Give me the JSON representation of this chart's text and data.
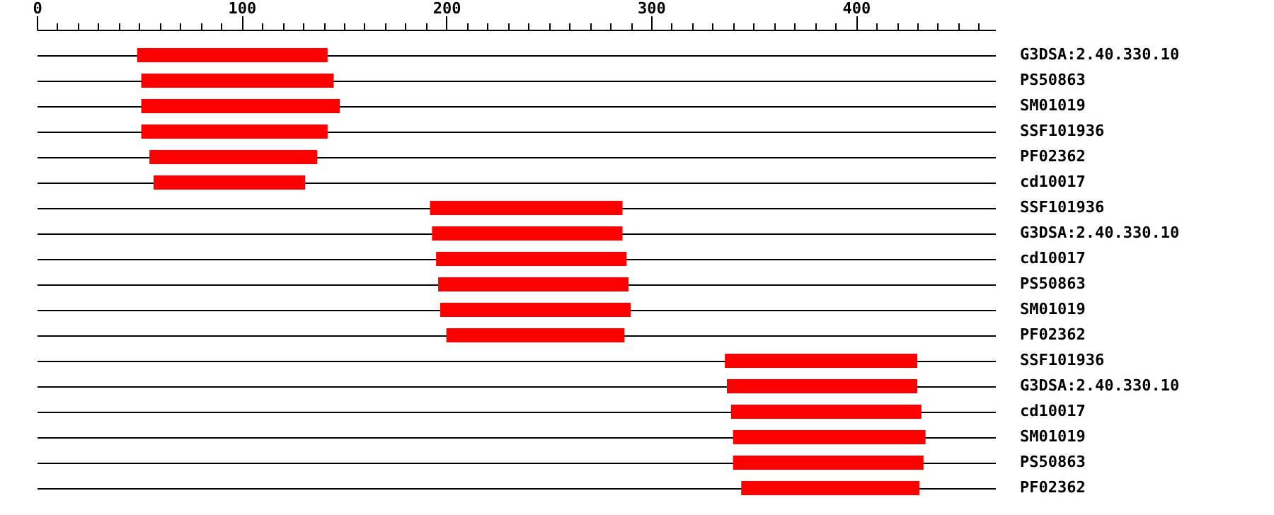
{
  "chart_data": {
    "type": "bar",
    "orientation": "horizontal",
    "grid": "y",
    "color": "#ff0000",
    "categories": [
      "G3DSA:2.40.330.10",
      "PS50863",
      "SM01019",
      "SSF101936",
      "PF02362",
      "cd10017",
      "SSF101936",
      "G3DSA:2.40.330.10",
      "cd10017",
      "PS50863",
      "SM01019",
      "PF02362",
      "SSF101936",
      "G3DSA:2.40.330.10",
      "cd10017",
      "SM01019",
      "PS50863",
      "PF02362"
    ],
    "base": [
      49,
      51,
      51,
      51,
      55,
      57,
      192,
      193,
      195,
      196,
      197,
      200,
      336,
      337,
      339,
      340,
      340,
      344
    ],
    "values": [
      93,
      94,
      97,
      91,
      82,
      74,
      94,
      93,
      93,
      93,
      93,
      87,
      94,
      93,
      93,
      94,
      93,
      87
    ],
    "xlim": [
      0,
      468
    ],
    "xticks": [
      0,
      {
        "value": 10,
        "label": null
      },
      {
        "value": 20,
        "label": null
      },
      {
        "value": 30,
        "label": null
      },
      {
        "value": 40,
        "label": null
      },
      {
        "value": 50,
        "label": null
      },
      {
        "value": 60,
        "label": null
      },
      {
        "value": 70,
        "label": null
      },
      {
        "value": 80,
        "label": null
      },
      {
        "value": 90,
        "label": null
      },
      100,
      {
        "value": 110,
        "label": null
      },
      {
        "value": 120,
        "label": null
      },
      {
        "value": 130,
        "label": null
      },
      {
        "value": 140,
        "label": null
      },
      {
        "value": 150,
        "label": null
      },
      {
        "value": 160,
        "label": null
      },
      {
        "value": 170,
        "label": null
      },
      {
        "value": 180,
        "label": null
      },
      {
        "value": 190,
        "label": null
      },
      200,
      {
        "value": 210,
        "label": null
      },
      {
        "value": 220,
        "label": null
      },
      {
        "value": 230,
        "label": null
      },
      {
        "value": 240,
        "label": null
      },
      {
        "value": 250,
        "label": null
      },
      {
        "value": 260,
        "label": null
      },
      {
        "value": 270,
        "label": null
      },
      {
        "value": 280,
        "label": null
      },
      {
        "value": 290,
        "label": null
      },
      300,
      {
        "value": 310,
        "label": null
      },
      {
        "value": 320,
        "label": null
      },
      {
        "value": 330,
        "label": null
      },
      {
        "value": 340,
        "label": null
      },
      {
        "value": 350,
        "label": null
      },
      {
        "value": 360,
        "label": null
      },
      {
        "value": 370,
        "label": null
      },
      {
        "value": 380,
        "label": null
      },
      {
        "value": 390,
        "label": null
      },
      400,
      {
        "value": 410,
        "label": null
      },
      {
        "value": 420,
        "label": null
      },
      {
        "value": 430,
        "label": null
      },
      {
        "value": 440,
        "label": null
      },
      {
        "value": 450,
        "label": null
      },
      {
        "value": 460,
        "label": null
      }
    ]
  }
}
